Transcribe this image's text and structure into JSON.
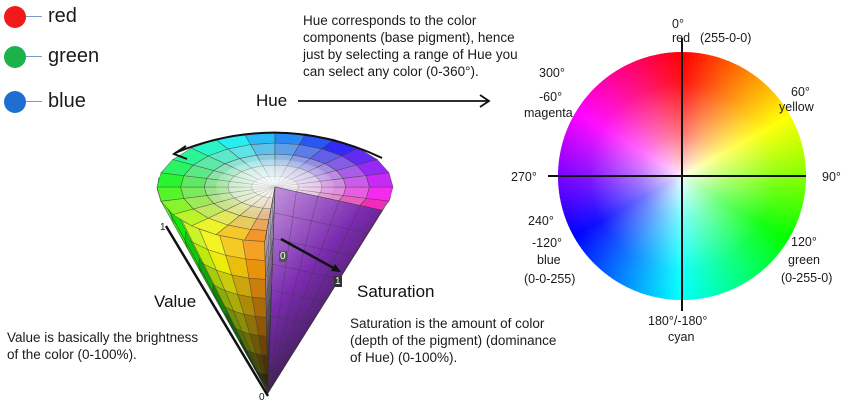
{
  "legend": [
    {
      "label": "red",
      "color": "#f01a1a"
    },
    {
      "label": "green",
      "color": "#1bb24a"
    },
    {
      "label": "blue",
      "color": "#1f6fd1"
    }
  ],
  "hue": {
    "label": "Hue",
    "description": [
      "Hue corresponds to the color",
      "components (base pigment), hence",
      "just by selecting a range of Hue you",
      "can select any color (0-360°)."
    ]
  },
  "value": {
    "label": "Value",
    "description": [
      "Value is basically the brightness",
      "of the color (0-100%)."
    ],
    "tick_top": "1",
    "tick_bottom": "0"
  },
  "saturation": {
    "label": "Saturation",
    "description": [
      "Saturation is the amount of color",
      "(depth of the pigment) (dominance",
      "of Hue) (0-100%)."
    ],
    "tick_start": "0",
    "tick_end": "1"
  },
  "wheel": {
    "top_deg": "0°",
    "top_name": "red",
    "top_rgb": "(255-0-0)",
    "a300_deg": "300°",
    "a300_neg": "-60°",
    "a300_name": "magenta",
    "a60_deg": "60°",
    "a60_name": "yellow",
    "left_deg": "270°",
    "right_deg": "90°",
    "a240_deg": "240°",
    "a240_neg": "-120°",
    "a240_name": "blue",
    "a240_rgb": "(0-0-255)",
    "a120_deg": "120°",
    "a120_name": "green",
    "a120_rgb": "(0-255-0)",
    "bottom_deg": "180°/-180°",
    "bottom_name": "cyan"
  }
}
